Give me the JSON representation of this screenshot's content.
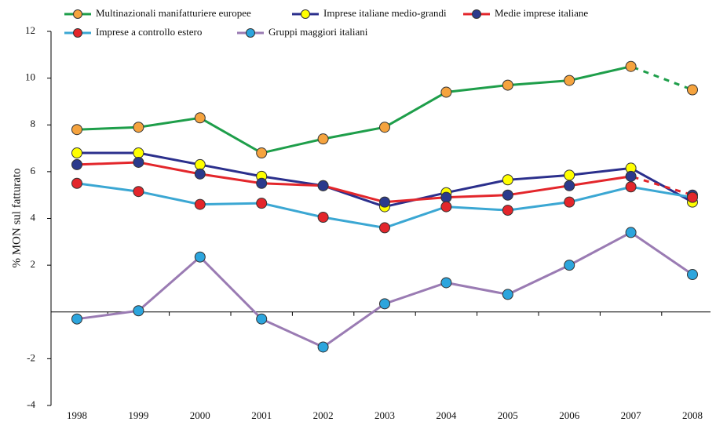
{
  "chart_data": {
    "type": "line",
    "y_label": "% MON sul fatturato",
    "categories": [
      "1998",
      "1999",
      "2000",
      "2001",
      "2002",
      "2003",
      "2004",
      "2005",
      "2006",
      "2007",
      "2008"
    ],
    "ylim": [
      -4,
      12
    ],
    "yticks": [
      -4,
      -2,
      2,
      4,
      6,
      8,
      10,
      12
    ],
    "series": [
      {
        "name": "Multinazionali manifatturiere europee",
        "color": "#1e9e4a",
        "marker_color": "#f5a33e",
        "dashed_last": true,
        "values": [
          7.8,
          7.9,
          8.3,
          6.8,
          7.4,
          7.9,
          9.4,
          9.7,
          9.9,
          10.5,
          9.5
        ]
      },
      {
        "name": "Imprese italiane medio-grandi",
        "color": "#2b2f8c",
        "marker_color": "#ffff00",
        "dashed_last": false,
        "values": [
          6.8,
          6.8,
          6.3,
          5.8,
          5.4,
          4.5,
          5.1,
          5.65,
          5.85,
          6.15,
          4.7
        ]
      },
      {
        "name": "Medie imprese italiane",
        "color": "#e3262b",
        "marker_color": "#2b3a8c",
        "dashed_last": true,
        "values": [
          6.3,
          6.4,
          5.9,
          5.5,
          5.4,
          4.7,
          4.9,
          5.0,
          5.4,
          5.8,
          5.0
        ]
      },
      {
        "name": "Imprese a controllo estero",
        "color": "#3ba7d3",
        "marker_color": "#e3262b",
        "dashed_last": false,
        "values": [
          5.5,
          5.15,
          4.6,
          4.65,
          4.05,
          3.6,
          4.5,
          4.35,
          4.7,
          5.35,
          4.9
        ]
      },
      {
        "name": "Gruppi maggiori italiani",
        "color": "#9a7bb3",
        "marker_color": "#2ca5dd",
        "dashed_last": false,
        "values": [
          -0.3,
          0.05,
          2.35,
          -0.3,
          -1.5,
          0.35,
          1.25,
          0.75,
          2.0,
          3.4,
          1.6
        ]
      }
    ]
  }
}
